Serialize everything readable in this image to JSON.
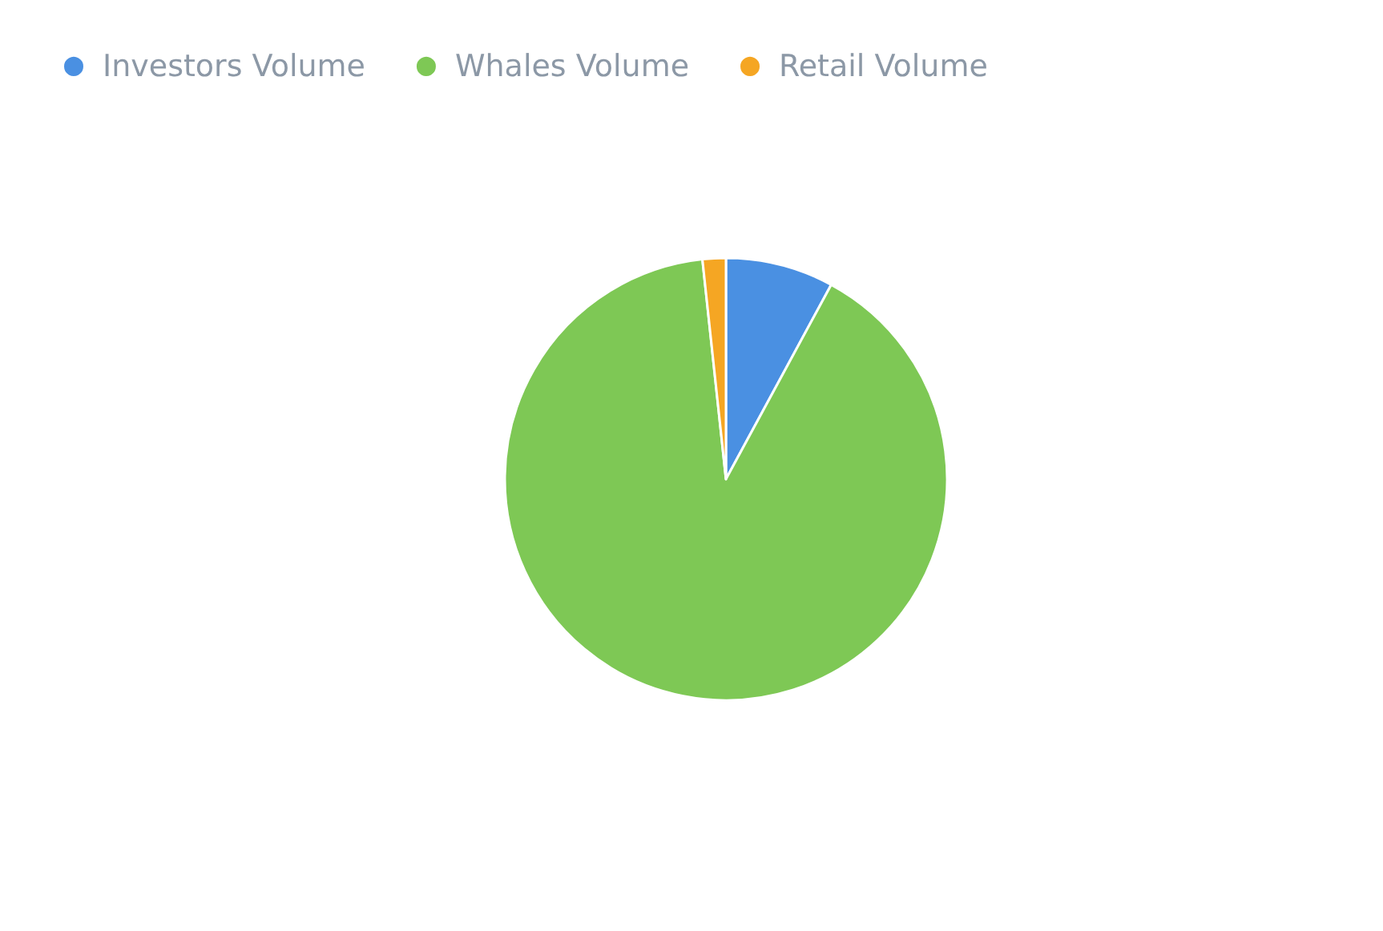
{
  "chart_data": {
    "type": "pie",
    "categories": [
      "Investors Volume",
      "Whales Volume",
      "Retail Volume"
    ],
    "values": [
      7.9,
      90.4,
      1.7
    ],
    "colors": [
      "#4a90e2",
      "#7ec855",
      "#f5a623"
    ],
    "legend": "top left"
  }
}
